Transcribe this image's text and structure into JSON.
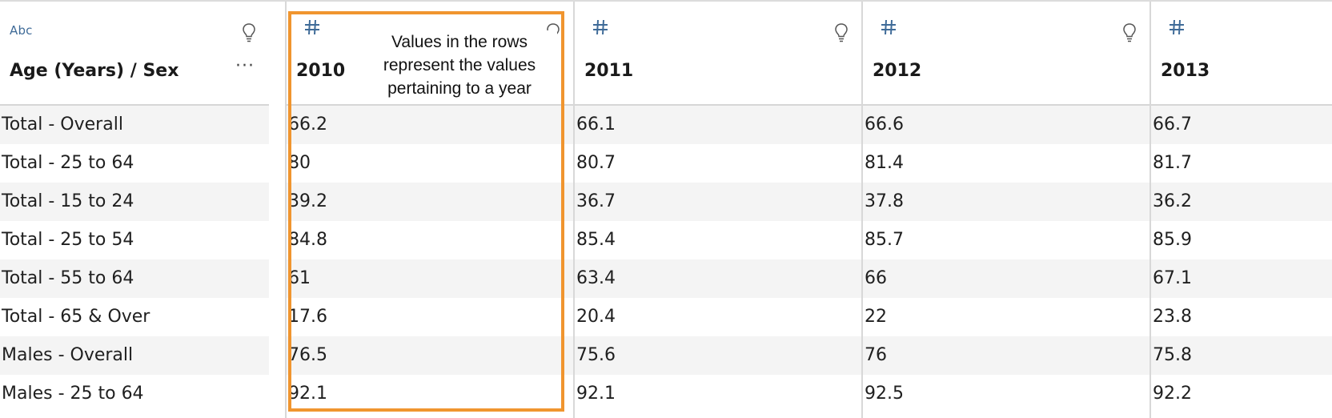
{
  "table": {
    "columns": [
      {
        "type_label": "Abc",
        "type_icon": "text-type-icon",
        "title": "Age (Years) / Sex",
        "more_label": "···"
      },
      {
        "type_label": "#",
        "type_icon": "number-type-icon",
        "title": "2010"
      },
      {
        "type_label": "#",
        "type_icon": "number-type-icon",
        "title": "2011"
      },
      {
        "type_label": "#",
        "type_icon": "number-type-icon",
        "title": "2012"
      },
      {
        "type_label": "#",
        "type_icon": "number-type-icon",
        "title": "2013"
      }
    ],
    "rows": [
      [
        "Total - Overall",
        "66.2",
        "66.1",
        "66.6",
        "66.7"
      ],
      [
        "Total - 25 to 64",
        "80",
        "80.7",
        "81.4",
        "81.7"
      ],
      [
        "Total - 15 to 24",
        "39.2",
        "36.7",
        "37.8",
        "36.2"
      ],
      [
        "Total - 25 to 54",
        "84.8",
        "85.4",
        "85.7",
        "85.9"
      ],
      [
        "Total - 55 to 64",
        "61",
        "63.4",
        "66",
        "67.1"
      ],
      [
        "Total - 65 & Over",
        "17.6",
        "20.4",
        "22",
        "23.8"
      ],
      [
        "Males - Overall",
        "76.5",
        "75.6",
        "76",
        "75.8"
      ],
      [
        "Males - 25 to 64",
        "92.1",
        "92.1",
        "92.5",
        "92.2"
      ]
    ]
  },
  "annotation": {
    "text": "Values in the rows represent the values pertaining to a year",
    "color": "#f0952f"
  },
  "colors": {
    "type_icon": "#3f6b98",
    "row_alt": "#f4f4f4",
    "grid_line": "#d8d8d8"
  },
  "icons": [
    "text-type-icon",
    "number-type-icon",
    "lightbulb-icon",
    "more-options-icon"
  ]
}
